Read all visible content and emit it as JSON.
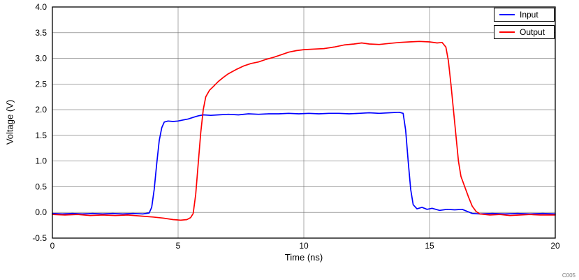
{
  "chart_data": {
    "type": "line",
    "title": "",
    "xlabel": "Time (ns)",
    "ylabel": "Voltage  (V)",
    "xlim": [
      0,
      20
    ],
    "ylim": [
      -0.5,
      4.0
    ],
    "x_ticks": [
      0,
      5,
      10,
      15,
      20
    ],
    "x_tick_labels": [
      "0",
      "5",
      "10",
      "15",
      "20"
    ],
    "y_ticks": [
      -0.5,
      0.0,
      0.5,
      1.0,
      1.5,
      2.0,
      2.5,
      3.0,
      3.5,
      4.0
    ],
    "y_tick_labels": [
      "-0.5",
      "0.0",
      "0.5",
      "1.0",
      "1.5",
      "2.0",
      "2.5",
      "3.0",
      "3.5",
      "4.0"
    ],
    "grid": true,
    "legend_position": "top-right",
    "series": [
      {
        "name": "Input",
        "color": "#0000FF",
        "points": [
          [
            0,
            -0.02
          ],
          [
            0.4,
            -0.03
          ],
          [
            0.8,
            -0.02
          ],
          [
            1.2,
            -0.03
          ],
          [
            1.6,
            -0.02
          ],
          [
            2.0,
            -0.03
          ],
          [
            2.4,
            -0.02
          ],
          [
            2.8,
            -0.03
          ],
          [
            3.2,
            -0.02
          ],
          [
            3.6,
            -0.03
          ],
          [
            3.85,
            -0.01
          ],
          [
            3.95,
            0.1
          ],
          [
            4.05,
            0.45
          ],
          [
            4.15,
            0.95
          ],
          [
            4.25,
            1.4
          ],
          [
            4.35,
            1.65
          ],
          [
            4.45,
            1.76
          ],
          [
            4.6,
            1.78
          ],
          [
            4.8,
            1.77
          ],
          [
            5.0,
            1.78
          ],
          [
            5.2,
            1.8
          ],
          [
            5.4,
            1.82
          ],
          [
            5.6,
            1.85
          ],
          [
            5.8,
            1.88
          ],
          [
            6.0,
            1.9
          ],
          [
            6.3,
            1.89
          ],
          [
            6.6,
            1.9
          ],
          [
            7.0,
            1.91
          ],
          [
            7.4,
            1.9
          ],
          [
            7.8,
            1.92
          ],
          [
            8.2,
            1.91
          ],
          [
            8.6,
            1.92
          ],
          [
            9.0,
            1.92
          ],
          [
            9.4,
            1.93
          ],
          [
            9.8,
            1.92
          ],
          [
            10.2,
            1.93
          ],
          [
            10.6,
            1.92
          ],
          [
            11.0,
            1.93
          ],
          [
            11.4,
            1.93
          ],
          [
            11.8,
            1.92
          ],
          [
            12.2,
            1.93
          ],
          [
            12.6,
            1.94
          ],
          [
            13.0,
            1.93
          ],
          [
            13.4,
            1.94
          ],
          [
            13.8,
            1.95
          ],
          [
            13.95,
            1.93
          ],
          [
            14.05,
            1.6
          ],
          [
            14.15,
            1.0
          ],
          [
            14.25,
            0.45
          ],
          [
            14.35,
            0.15
          ],
          [
            14.5,
            0.07
          ],
          [
            14.7,
            0.1
          ],
          [
            14.9,
            0.06
          ],
          [
            15.1,
            0.08
          ],
          [
            15.4,
            0.04
          ],
          [
            15.7,
            0.06
          ],
          [
            16.0,
            0.05
          ],
          [
            16.3,
            0.06
          ],
          [
            16.5,
            0.02
          ],
          [
            16.7,
            -0.02
          ],
          [
            17.0,
            -0.03
          ],
          [
            17.5,
            -0.02
          ],
          [
            18.0,
            -0.03
          ],
          [
            18.5,
            -0.02
          ],
          [
            19.0,
            -0.03
          ],
          [
            19.5,
            -0.02
          ],
          [
            20,
            -0.03
          ]
        ]
      },
      {
        "name": "Output",
        "color": "#FF0000",
        "points": [
          [
            0,
            -0.04
          ],
          [
            0.5,
            -0.05
          ],
          [
            1.0,
            -0.04
          ],
          [
            1.5,
            -0.06
          ],
          [
            2.0,
            -0.05
          ],
          [
            2.5,
            -0.06
          ],
          [
            3.0,
            -0.05
          ],
          [
            3.5,
            -0.07
          ],
          [
            4.0,
            -0.09
          ],
          [
            4.4,
            -0.11
          ],
          [
            4.8,
            -0.14
          ],
          [
            5.1,
            -0.15
          ],
          [
            5.35,
            -0.14
          ],
          [
            5.5,
            -0.1
          ],
          [
            5.6,
            -0.02
          ],
          [
            5.7,
            0.35
          ],
          [
            5.8,
            0.95
          ],
          [
            5.9,
            1.55
          ],
          [
            6.0,
            2.0
          ],
          [
            6.1,
            2.25
          ],
          [
            6.25,
            2.38
          ],
          [
            6.4,
            2.45
          ],
          [
            6.6,
            2.55
          ],
          [
            6.8,
            2.63
          ],
          [
            7.0,
            2.7
          ],
          [
            7.3,
            2.78
          ],
          [
            7.6,
            2.85
          ],
          [
            7.9,
            2.9
          ],
          [
            8.2,
            2.93
          ],
          [
            8.5,
            2.98
          ],
          [
            8.8,
            3.02
          ],
          [
            9.1,
            3.07
          ],
          [
            9.4,
            3.12
          ],
          [
            9.7,
            3.15
          ],
          [
            10.0,
            3.17
          ],
          [
            10.4,
            3.18
          ],
          [
            10.8,
            3.19
          ],
          [
            11.2,
            3.22
          ],
          [
            11.6,
            3.26
          ],
          [
            12.0,
            3.28
          ],
          [
            12.3,
            3.3
          ],
          [
            12.6,
            3.28
          ],
          [
            13.0,
            3.27
          ],
          [
            13.4,
            3.29
          ],
          [
            13.8,
            3.31
          ],
          [
            14.2,
            3.32
          ],
          [
            14.6,
            3.33
          ],
          [
            15.0,
            3.32
          ],
          [
            15.3,
            3.3
          ],
          [
            15.5,
            3.31
          ],
          [
            15.65,
            3.22
          ],
          [
            15.75,
            2.95
          ],
          [
            15.85,
            2.5
          ],
          [
            15.95,
            2.0
          ],
          [
            16.05,
            1.5
          ],
          [
            16.15,
            1.0
          ],
          [
            16.25,
            0.7
          ],
          [
            16.4,
            0.5
          ],
          [
            16.55,
            0.3
          ],
          [
            16.7,
            0.12
          ],
          [
            16.85,
            0.02
          ],
          [
            17.0,
            -0.03
          ],
          [
            17.4,
            -0.05
          ],
          [
            17.8,
            -0.04
          ],
          [
            18.2,
            -0.06
          ],
          [
            18.6,
            -0.05
          ],
          [
            19.0,
            -0.04
          ],
          [
            19.4,
            -0.05
          ],
          [
            20,
            -0.05
          ]
        ]
      }
    ]
  },
  "footer": {
    "watermark": "C005"
  }
}
